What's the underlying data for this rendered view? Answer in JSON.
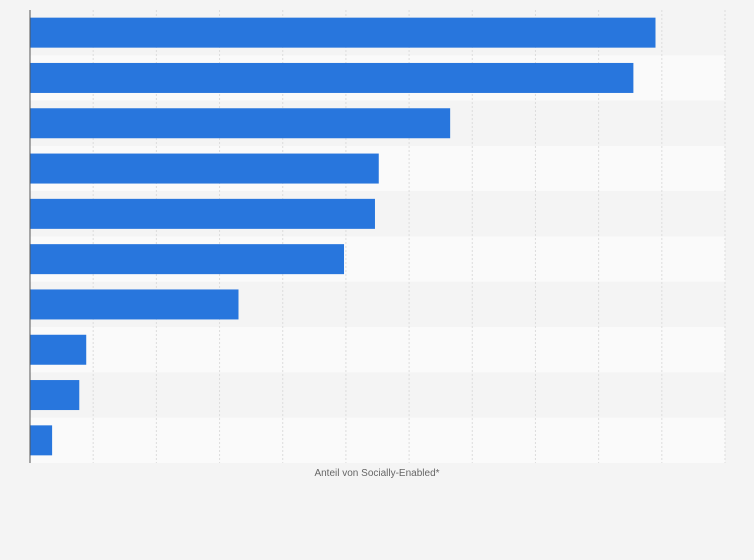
{
  "chart_data": {
    "type": "bar",
    "orientation": "horizontal",
    "categories": [
      "",
      "",
      "",
      "",
      "",
      "",
      "",
      "",
      "",
      ""
    ],
    "values": [
      99,
      95.5,
      66.5,
      55.2,
      54.6,
      49.7,
      33,
      8.9,
      7.8,
      3.5
    ],
    "title": "",
    "xlabel": "Anteil von Socially-Enabled*",
    "ylabel": "",
    "xlim": [
      0,
      110
    ],
    "grid": true,
    "legend": "none",
    "bar_color": "#2876dd",
    "band_colors": [
      "#f4f4f4",
      "#fafafa"
    ],
    "grid_color": "#dcdcdc",
    "axis_color": "#555555"
  }
}
